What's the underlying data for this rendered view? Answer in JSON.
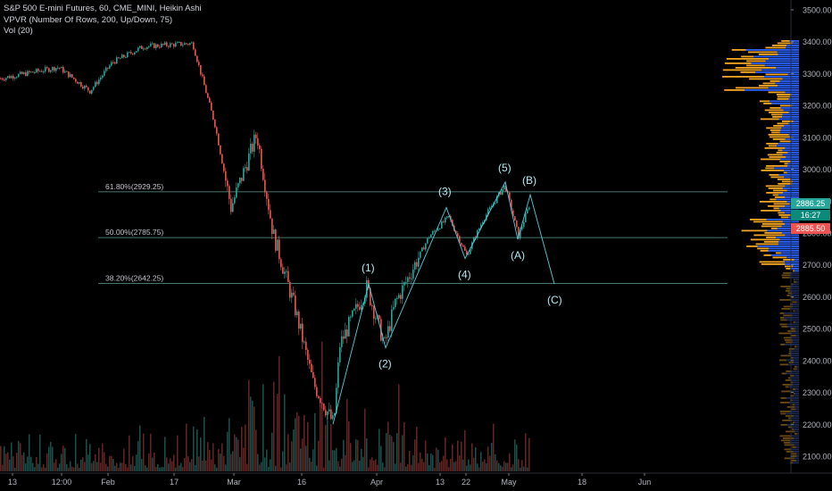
{
  "legend": {
    "symbol": "S&P 500 E-mini Futures, 60, CME_MINI, Heikin Ashi",
    "vpvr": "VPVR (Number Of Rows, 200, Up/Down, 75)",
    "vol": "Vol (20)"
  },
  "colors": {
    "background": "#000000",
    "up": "#26a69a",
    "down": "#ef5350",
    "wave_line": "#4dd0e1",
    "fib_line": "#5e9e94",
    "vpvr_up": "#2962ff",
    "vpvr_down": "#f5a623",
    "last_price_up": "#26a69a",
    "last_price_down": "#ef5350"
  },
  "chart_data": {
    "type": "candlestick",
    "title": "S&P 500 E-mini Futures, 60, CME_MINI, Heikin Ashi",
    "y_axis": {
      "range": [
        2050,
        3550
      ],
      "ticks": [
        "3500.00",
        "3400.00",
        "3300.00",
        "3200.00",
        "3100.00",
        "3000.00",
        "2900.00",
        "2800.00",
        "2700.00",
        "2600.00",
        "2500.00",
        "2400.00",
        "2300.00",
        "2200.00",
        "2100.00"
      ],
      "position": "right"
    },
    "x_axis": {
      "ticks": [
        "13",
        "12:00",
        "Feb",
        "17",
        "Mar",
        "16",
        "Apr",
        "13",
        "22",
        "May",
        "18",
        "Jun"
      ]
    },
    "price_path": [
      {
        "t": "13",
        "v": 3285
      },
      {
        "t": "12:00",
        "v": 3320
      },
      {
        "t": "Feb",
        "v": 3245
      },
      {
        "t": "Feb",
        "v": 3335
      },
      {
        "t": "17",
        "v": 3385
      },
      {
        "t": "17",
        "v": 3395
      },
      {
        "t": "Mar",
        "v": 3140
      },
      {
        "t": "Mar",
        "v": 2880
      },
      {
        "t": "Mar",
        "v": 3110
      },
      {
        "t": "Mar",
        "v": 2800
      },
      {
        "t": "16",
        "v": 2560
      },
      {
        "t": "16",
        "v": 2330
      },
      {
        "t": "16",
        "v": 2200
      },
      {
        "t": "16",
        "v": 2450
      },
      {
        "t": "Apr",
        "v": 2630
      },
      {
        "t": "Apr",
        "v": 2450
      },
      {
        "t": "Apr",
        "v": 2580
      },
      {
        "t": "13",
        "v": 2790
      },
      {
        "t": "13",
        "v": 2850
      },
      {
        "t": "22",
        "v": 2730
      },
      {
        "t": "22",
        "v": 2840
      },
      {
        "t": "May",
        "v": 2950
      },
      {
        "t": "May",
        "v": 2790
      },
      {
        "t": "May",
        "v": 2886
      }
    ],
    "fib_levels": [
      {
        "label": "61.80%(2929.25)",
        "value": 2929.25
      },
      {
        "label": "50.00%(2785.75)",
        "value": 2785.75
      },
      {
        "label": "38.20%(2642.25)",
        "value": 2642.25
      }
    ],
    "wave_labels": [
      {
        "label": "(1)",
        "value": 2640
      },
      {
        "label": "(2)",
        "value": 2440
      },
      {
        "label": "(3)",
        "value": 2880
      },
      {
        "label": "(4)",
        "value": 2720
      },
      {
        "label": "(5)",
        "value": 2960
      },
      {
        "label": "(A)",
        "value": 2780
      },
      {
        "label": "(B)",
        "value": 2920
      },
      {
        "label": "(C)",
        "value": 2640
      }
    ],
    "last_price": {
      "high": "2886.25",
      "time": "16:27",
      "low": "2885.50"
    },
    "volume_series": "Vol (20)"
  }
}
